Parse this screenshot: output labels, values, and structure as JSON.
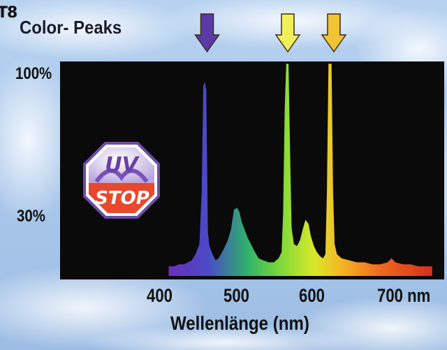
{
  "header": {
    "corner_text": "T8",
    "title": "Color- Peaks"
  },
  "logo": {
    "line1": "UV",
    "line2": "STOP"
  },
  "chart_data": {
    "type": "line",
    "title": "Color- Peaks",
    "xlabel": "Wellenlänge (nm)",
    "ylabel": "",
    "xlim": [
      300,
      755
    ],
    "x_ticks": [
      {
        "value": 400,
        "label": "400"
      },
      {
        "value": 500,
        "label": "500"
      },
      {
        "value": 600,
        "label": "600"
      },
      {
        "value": 700,
        "label": "700 nm"
      }
    ],
    "y_ticks": [
      {
        "value": 100,
        "label": "100%"
      },
      {
        "value": 30,
        "label": "30%"
      }
    ],
    "ylim": [
      0,
      100
    ],
    "background": "#0a0a0a",
    "peak_markers": [
      {
        "x": 455,
        "color": "#5b3aa8"
      },
      {
        "x": 560,
        "color": "#f2f05a"
      },
      {
        "x": 620,
        "color": "#f0c433"
      }
    ],
    "series": [
      {
        "values": [
          [
            405,
            3
          ],
          [
            412,
            3
          ],
          [
            418,
            4
          ],
          [
            425,
            4
          ],
          [
            430,
            5
          ],
          [
            435,
            6
          ],
          [
            440,
            9
          ],
          [
            445,
            14
          ],
          [
            448,
            40
          ],
          [
            450,
            92
          ],
          [
            452,
            94
          ],
          [
            454,
            90
          ],
          [
            456,
            20
          ],
          [
            458,
            13
          ],
          [
            462,
            9
          ],
          [
            466,
            6
          ],
          [
            470,
            7
          ],
          [
            476,
            11
          ],
          [
            482,
            16
          ],
          [
            486,
            21
          ],
          [
            488,
            26
          ],
          [
            490,
            31
          ],
          [
            494,
            32
          ],
          [
            497,
            30
          ],
          [
            500,
            25
          ],
          [
            504,
            21
          ],
          [
            508,
            17
          ],
          [
            512,
            14
          ],
          [
            516,
            11
          ],
          [
            522,
            7
          ],
          [
            528,
            6
          ],
          [
            535,
            5
          ],
          [
            542,
            5
          ],
          [
            548,
            7
          ],
          [
            552,
            10
          ],
          [
            554,
            30
          ],
          [
            556,
            80
          ],
          [
            558,
            103
          ],
          [
            561,
            103
          ],
          [
            563,
            60
          ],
          [
            565,
            22
          ],
          [
            568,
            14
          ],
          [
            572,
            13
          ],
          [
            576,
            16
          ],
          [
            580,
            22
          ],
          [
            583,
            26
          ],
          [
            587,
            24
          ],
          [
            590,
            18
          ],
          [
            594,
            13
          ],
          [
            598,
            10
          ],
          [
            602,
            8
          ],
          [
            606,
            7
          ],
          [
            609,
            9
          ],
          [
            611,
            40
          ],
          [
            613,
            103
          ],
          [
            617,
            103
          ],
          [
            619,
            40
          ],
          [
            621,
            14
          ],
          [
            624,
            9
          ],
          [
            630,
            7
          ],
          [
            640,
            6
          ],
          [
            650,
            5
          ],
          [
            660,
            5
          ],
          [
            670,
            4
          ],
          [
            680,
            4
          ],
          [
            690,
            5
          ],
          [
            695,
            7
          ],
          [
            700,
            5
          ],
          [
            710,
            4
          ],
          [
            720,
            4
          ],
          [
            730,
            3
          ],
          [
            740,
            3
          ],
          [
            748,
            3
          ]
        ]
      }
    ]
  }
}
